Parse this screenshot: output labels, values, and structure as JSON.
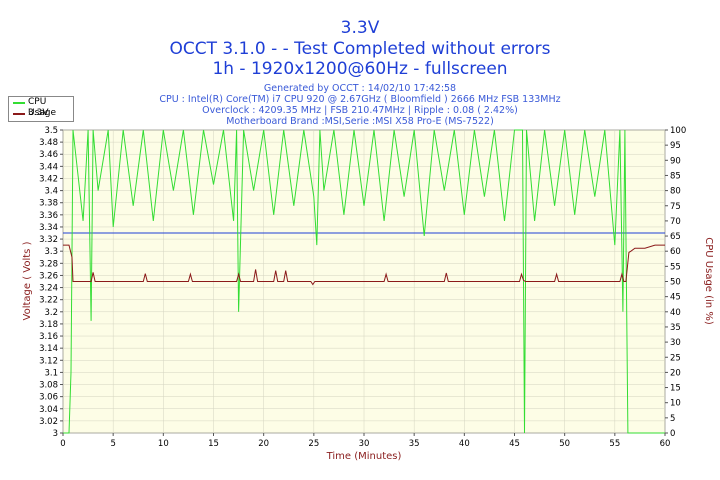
{
  "header": {
    "title": "3.3V",
    "subtitle1": "OCCT 3.1.0 -  - Test Completed without errors",
    "subtitle2": "1h - 1920x1200@60Hz - fullscreen",
    "info_lines": [
      "Generated by OCCT : 14/02/10 17:42:58",
      "CPU : Intel(R) Core(TM) i7 CPU 920 @ 2.67GHz ( Bloomfield ) 2666 MHz FSB 133MHz",
      "Overclock : 4209.35 MHz | FSB 210.47MHz | Ripple : 0.08 ( 2.42%)",
      "Motherboard Brand :MSI,Serie :MSI X58 Pro-E (MS-7522)"
    ]
  },
  "colors": {
    "cpu_usage": "#33dd33",
    "voltage": "#8b1a1a",
    "reference_line": "#1f3fd6",
    "plot_bg": "#fdfde6",
    "text_blue": "#1f3fd6",
    "axis_label": "#8b2020"
  },
  "chart_data": {
    "type": "line",
    "xlabel": "Time (Minutes)",
    "ylabel_left": "Voltage ( Volts )",
    "ylabel_right": "CPU Usage (in %)",
    "xlim": [
      0,
      60
    ],
    "ylim_left": [
      3.0,
      3.5
    ],
    "ylim_right": [
      0,
      100
    ],
    "x_ticks": [
      0,
      5,
      10,
      15,
      20,
      25,
      30,
      35,
      40,
      45,
      50,
      55,
      60
    ],
    "y_ticks_left": [
      3.0,
      3.02,
      3.04,
      3.06,
      3.08,
      3.1,
      3.12,
      3.14,
      3.16,
      3.18,
      3.2,
      3.22,
      3.24,
      3.26,
      3.28,
      3.3,
      3.32,
      3.34,
      3.36,
      3.38,
      3.4,
      3.42,
      3.44,
      3.46,
      3.48,
      3.5
    ],
    "y_ticks_left_labels": [
      "3",
      "3.02",
      "3.04",
      "3.06",
      "3.08",
      "3.1",
      "3.12",
      "3.14",
      "3.16",
      "3.18",
      "3.2",
      "3.22",
      "3.24",
      "3.26",
      "3.28",
      "3.3",
      "3.32",
      "3.34",
      "3.36",
      "3.38",
      "3.4",
      "3.42",
      "3.44",
      "3.46",
      "3.48",
      "3.5"
    ],
    "y_ticks_right": [
      0,
      5,
      10,
      15,
      20,
      25,
      30,
      35,
      40,
      45,
      50,
      55,
      60,
      65,
      70,
      75,
      80,
      85,
      90,
      95,
      100
    ],
    "reference_line": 3.33,
    "legend": [
      "CPU Usage",
      "3.3V"
    ],
    "legend_position": "top-left",
    "series": [
      {
        "name": "3.3V",
        "axis": "left",
        "x": [
          0,
          0.6,
          0.9,
          1.0,
          1.3,
          2.0,
          2.8,
          3.0,
          3.2,
          3.4,
          3.6,
          6,
          8,
          8.2,
          8.4,
          11,
          12.5,
          12.7,
          12.9,
          17.3,
          17.5,
          17.7,
          19,
          19.2,
          19.4,
          21,
          21.2,
          21.4,
          22,
          22.2,
          22.4,
          24.7,
          24.9,
          25.1,
          32,
          32.2,
          32.4,
          38,
          38.2,
          38.4,
          45.5,
          45.7,
          45.9,
          46.1,
          49,
          49.2,
          49.4,
          55.5,
          55.7,
          55.9,
          56.1,
          56.4,
          56.6,
          57,
          58,
          59,
          60
        ],
        "values": [
          3.31,
          3.31,
          3.29,
          3.25,
          3.25,
          3.25,
          3.25,
          3.265,
          3.25,
          3.25,
          3.25,
          3.25,
          3.25,
          3.263,
          3.25,
          3.25,
          3.25,
          3.262,
          3.25,
          3.25,
          3.262,
          3.25,
          3.25,
          3.27,
          3.25,
          3.25,
          3.268,
          3.25,
          3.25,
          3.268,
          3.25,
          3.25,
          3.245,
          3.25,
          3.25,
          3.262,
          3.25,
          3.25,
          3.264,
          3.25,
          3.25,
          3.262,
          3.252,
          3.25,
          3.25,
          3.262,
          3.25,
          3.25,
          3.262,
          3.25,
          3.25,
          3.298,
          3.3,
          3.305,
          3.305,
          3.31,
          3.31
        ]
      },
      {
        "name": "CPU Usage",
        "axis": "right",
        "x": [
          0,
          0.6,
          0.8,
          1.0,
          2.0,
          2.5,
          2.8,
          3.0,
          3.5,
          4.5,
          5.0,
          6.0,
          7.0,
          8.0,
          9.0,
          10.0,
          11.0,
          12.0,
          13.0,
          14.0,
          15.0,
          16.0,
          17.0,
          17.3,
          17.5,
          18.0,
          19.0,
          20.0,
          21.0,
          22.0,
          23.0,
          24.0,
          25.0,
          25.3,
          25.6,
          26.0,
          27.0,
          28.0,
          29.0,
          30.0,
          31.0,
          32.0,
          33.0,
          34.0,
          35.0,
          36.0,
          37.0,
          38.0,
          39.0,
          40.0,
          41.0,
          42.0,
          43.0,
          44.0,
          45.0,
          45.8,
          46.0,
          46.2,
          47.0,
          48.0,
          49.0,
          50.0,
          51.0,
          52.0,
          53.0,
          54.0,
          55.0,
          55.5,
          55.8,
          56.0,
          56.3,
          57.0,
          58.0,
          59.0,
          60.0
        ],
        "values": [
          0,
          0,
          20,
          100,
          70,
          100,
          37,
          100,
          80,
          100,
          68,
          100,
          75,
          100,
          70,
          100,
          80,
          100,
          72,
          100,
          82,
          100,
          70,
          100,
          40,
          100,
          80,
          100,
          72,
          100,
          75,
          100,
          78,
          62,
          100,
          80,
          100,
          72,
          100,
          75,
          100,
          70,
          100,
          78,
          100,
          65,
          100,
          80,
          100,
          72,
          100,
          78,
          100,
          70,
          100,
          100,
          0,
          100,
          70,
          100,
          75,
          100,
          72,
          100,
          78,
          100,
          62,
          100,
          40,
          100,
          0,
          0,
          0,
          0,
          0
        ]
      }
    ]
  }
}
